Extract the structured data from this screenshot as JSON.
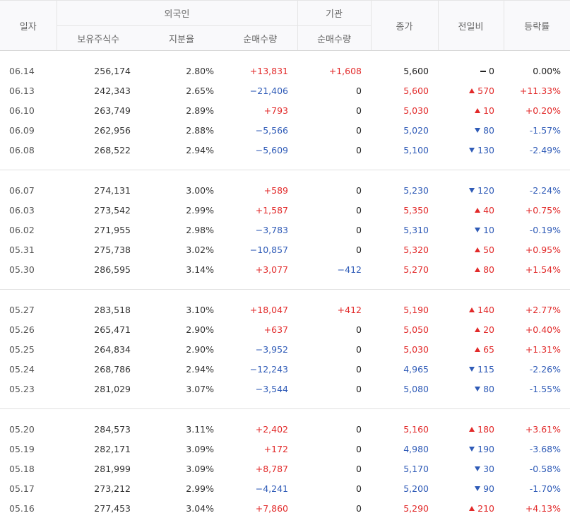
{
  "headers": {
    "date": "일자",
    "foreign": "외국인",
    "institution": "기관",
    "holdings": "보유주식수",
    "ratio": "지분율",
    "foreign_net": "순매수량",
    "inst_net": "순매수량",
    "close": "종가",
    "change": "전일비",
    "rate": "등락률"
  },
  "colors": {
    "up": "#e22a2a",
    "down": "#2f5bb7",
    "flat": "#222222"
  },
  "groups": [
    [
      {
        "date": "06.14",
        "holdings": "256,174",
        "ratio": "2.80%",
        "foreign_net": "+13,831",
        "fn_dir": "up",
        "inst_net": "+1,608",
        "in_dir": "up",
        "close": "5,600",
        "dir": "flat",
        "change": "0",
        "rate": "0.00%"
      },
      {
        "date": "06.13",
        "holdings": "242,343",
        "ratio": "2.65%",
        "foreign_net": "−21,406",
        "fn_dir": "down",
        "inst_net": "0",
        "in_dir": "flat",
        "close": "5,600",
        "dir": "up",
        "change": "570",
        "rate": "+11.33%"
      },
      {
        "date": "06.10",
        "holdings": "263,749",
        "ratio": "2.89%",
        "foreign_net": "+793",
        "fn_dir": "up",
        "inst_net": "0",
        "in_dir": "flat",
        "close": "5,030",
        "dir": "up",
        "change": "10",
        "rate": "+0.20%"
      },
      {
        "date": "06.09",
        "holdings": "262,956",
        "ratio": "2.88%",
        "foreign_net": "−5,566",
        "fn_dir": "down",
        "inst_net": "0",
        "in_dir": "flat",
        "close": "5,020",
        "dir": "down",
        "change": "80",
        "rate": "-1.57%"
      },
      {
        "date": "06.08",
        "holdings": "268,522",
        "ratio": "2.94%",
        "foreign_net": "−5,609",
        "fn_dir": "down",
        "inst_net": "0",
        "in_dir": "flat",
        "close": "5,100",
        "dir": "down",
        "change": "130",
        "rate": "-2.49%"
      }
    ],
    [
      {
        "date": "06.07",
        "holdings": "274,131",
        "ratio": "3.00%",
        "foreign_net": "+589",
        "fn_dir": "up",
        "inst_net": "0",
        "in_dir": "flat",
        "close": "5,230",
        "dir": "down",
        "change": "120",
        "rate": "-2.24%"
      },
      {
        "date": "06.03",
        "holdings": "273,542",
        "ratio": "2.99%",
        "foreign_net": "+1,587",
        "fn_dir": "up",
        "inst_net": "0",
        "in_dir": "flat",
        "close": "5,350",
        "dir": "up",
        "change": "40",
        "rate": "+0.75%"
      },
      {
        "date": "06.02",
        "holdings": "271,955",
        "ratio": "2.98%",
        "foreign_net": "−3,783",
        "fn_dir": "down",
        "inst_net": "0",
        "in_dir": "flat",
        "close": "5,310",
        "dir": "down",
        "change": "10",
        "rate": "-0.19%"
      },
      {
        "date": "05.31",
        "holdings": "275,738",
        "ratio": "3.02%",
        "foreign_net": "−10,857",
        "fn_dir": "down",
        "inst_net": "0",
        "in_dir": "flat",
        "close": "5,320",
        "dir": "up",
        "change": "50",
        "rate": "+0.95%"
      },
      {
        "date": "05.30",
        "holdings": "286,595",
        "ratio": "3.14%",
        "foreign_net": "+3,077",
        "fn_dir": "up",
        "inst_net": "−412",
        "in_dir": "down",
        "close": "5,270",
        "dir": "up",
        "change": "80",
        "rate": "+1.54%"
      }
    ],
    [
      {
        "date": "05.27",
        "holdings": "283,518",
        "ratio": "3.10%",
        "foreign_net": "+18,047",
        "fn_dir": "up",
        "inst_net": "+412",
        "in_dir": "up",
        "close": "5,190",
        "dir": "up",
        "change": "140",
        "rate": "+2.77%"
      },
      {
        "date": "05.26",
        "holdings": "265,471",
        "ratio": "2.90%",
        "foreign_net": "+637",
        "fn_dir": "up",
        "inst_net": "0",
        "in_dir": "flat",
        "close": "5,050",
        "dir": "up",
        "change": "20",
        "rate": "+0.40%"
      },
      {
        "date": "05.25",
        "holdings": "264,834",
        "ratio": "2.90%",
        "foreign_net": "−3,952",
        "fn_dir": "down",
        "inst_net": "0",
        "in_dir": "flat",
        "close": "5,030",
        "dir": "up",
        "change": "65",
        "rate": "+1.31%"
      },
      {
        "date": "05.24",
        "holdings": "268,786",
        "ratio": "2.94%",
        "foreign_net": "−12,243",
        "fn_dir": "down",
        "inst_net": "0",
        "in_dir": "flat",
        "close": "4,965",
        "dir": "down",
        "change": "115",
        "rate": "-2.26%"
      },
      {
        "date": "05.23",
        "holdings": "281,029",
        "ratio": "3.07%",
        "foreign_net": "−3,544",
        "fn_dir": "down",
        "inst_net": "0",
        "in_dir": "flat",
        "close": "5,080",
        "dir": "down",
        "change": "80",
        "rate": "-1.55%"
      }
    ],
    [
      {
        "date": "05.20",
        "holdings": "284,573",
        "ratio": "3.11%",
        "foreign_net": "+2,402",
        "fn_dir": "up",
        "inst_net": "0",
        "in_dir": "flat",
        "close": "5,160",
        "dir": "up",
        "change": "180",
        "rate": "+3.61%"
      },
      {
        "date": "05.19",
        "holdings": "282,171",
        "ratio": "3.09%",
        "foreign_net": "+172",
        "fn_dir": "up",
        "inst_net": "0",
        "in_dir": "flat",
        "close": "4,980",
        "dir": "down",
        "change": "190",
        "rate": "-3.68%"
      },
      {
        "date": "05.18",
        "holdings": "281,999",
        "ratio": "3.09%",
        "foreign_net": "+8,787",
        "fn_dir": "up",
        "inst_net": "0",
        "in_dir": "flat",
        "close": "5,170",
        "dir": "down",
        "change": "30",
        "rate": "-0.58%"
      },
      {
        "date": "05.17",
        "holdings": "273,212",
        "ratio": "2.99%",
        "foreign_net": "−4,241",
        "fn_dir": "down",
        "inst_net": "0",
        "in_dir": "flat",
        "close": "5,200",
        "dir": "down",
        "change": "90",
        "rate": "-1.70%"
      },
      {
        "date": "05.16",
        "holdings": "277,453",
        "ratio": "3.04%",
        "foreign_net": "+7,860",
        "fn_dir": "up",
        "inst_net": "0",
        "in_dir": "flat",
        "close": "5,290",
        "dir": "up",
        "change": "210",
        "rate": "+4.13%"
      }
    ]
  ]
}
